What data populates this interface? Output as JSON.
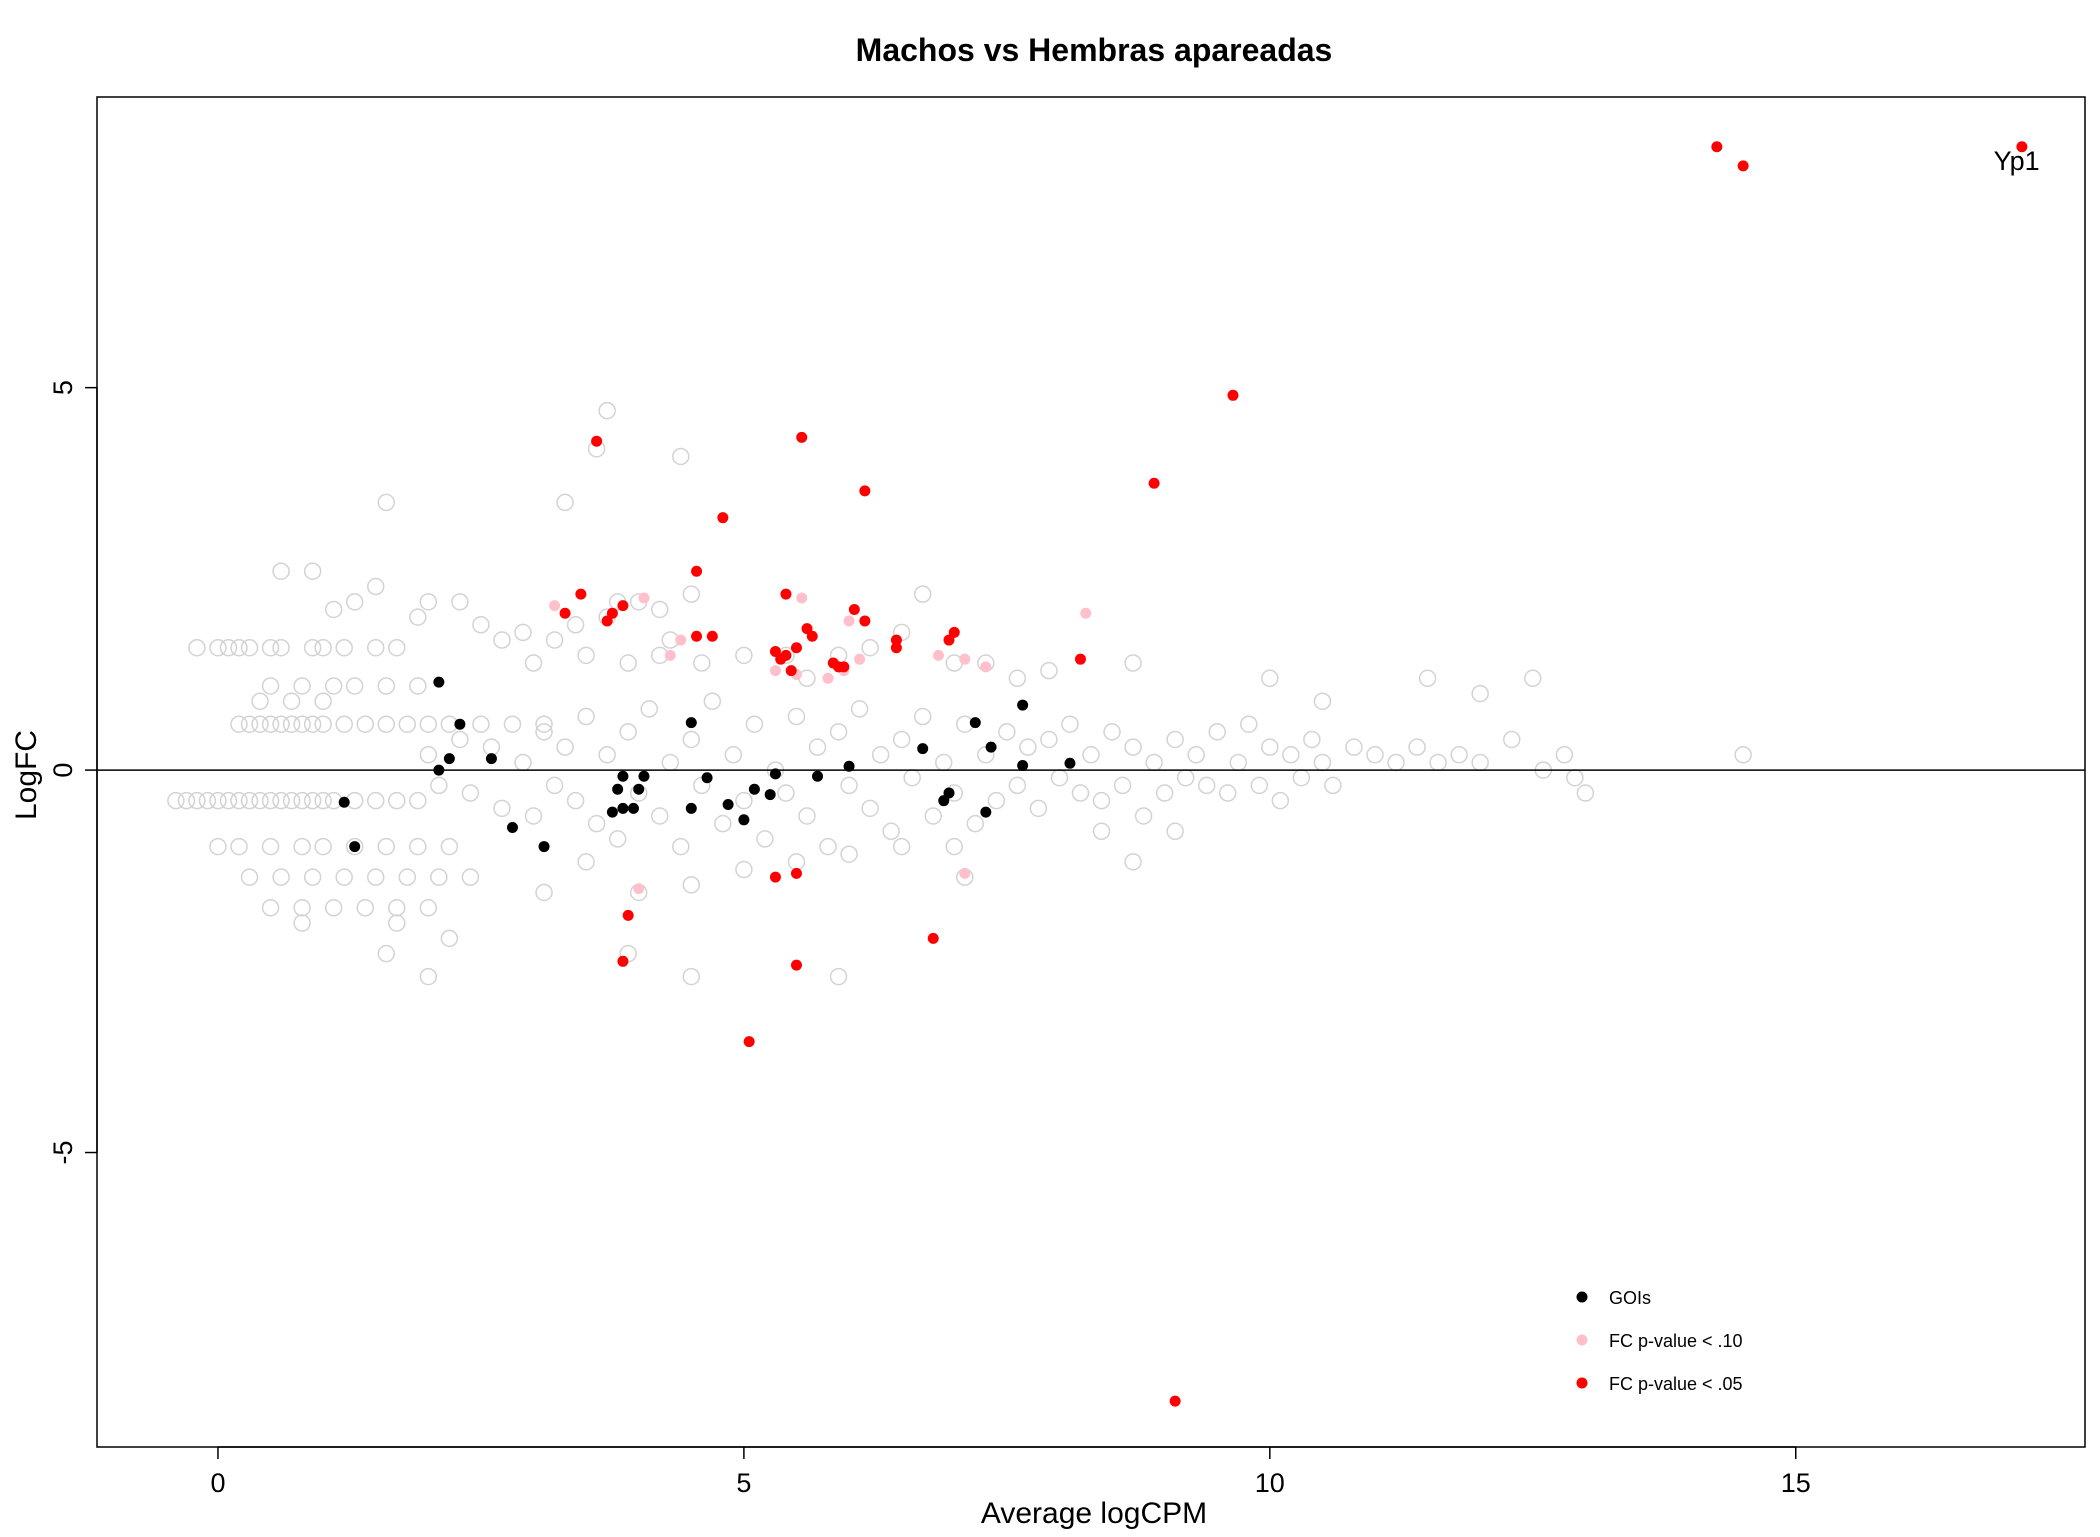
{
  "chart_data": {
    "type": "scatter",
    "title": "Machos vs Hembras apareadas",
    "xlabel": "Average logCPM",
    "ylabel": "LogFC",
    "xlim": [
      -1.15,
      17.75
    ],
    "ylim": [
      -8.85,
      8.8
    ],
    "x_ticks": [
      0,
      5,
      10,
      15
    ],
    "y_ticks": [
      -5,
      0,
      5
    ],
    "x_tick_labels": [
      "0",
      "5",
      "10",
      "15"
    ],
    "y_tick_labels": [
      "-5",
      "0",
      "5"
    ],
    "reference_line": {
      "y": 0
    },
    "grid": false,
    "legend_position": "bottom-right",
    "annotations": [
      {
        "text": "Yp1",
        "x": 17.1,
        "y": 7.9
      }
    ],
    "colors": {
      "background_genes": "#d3d3d3",
      "GOIs": "#000000",
      "p10": "#ffc0cb",
      "p05": "#ff0000"
    },
    "background_series": {
      "name": "",
      "note_marker": "hollow-circle",
      "points": [
        [
          -0.4,
          -0.4
        ],
        [
          -0.3,
          -0.4
        ],
        [
          -0.2,
          -0.4
        ],
        [
          -0.1,
          -0.4
        ],
        [
          0,
          -0.4
        ],
        [
          0.1,
          -0.4
        ],
        [
          0.2,
          -0.4
        ],
        [
          0.3,
          -0.4
        ],
        [
          0.4,
          -0.4
        ],
        [
          0.5,
          -0.4
        ],
        [
          0.6,
          -0.4
        ],
        [
          0.7,
          -0.4
        ],
        [
          0.8,
          -0.4
        ],
        [
          0.9,
          -0.4
        ],
        [
          1.0,
          -0.4
        ],
        [
          1.1,
          -0.4
        ],
        [
          1.3,
          -0.4
        ],
        [
          1.5,
          -0.4
        ],
        [
          1.7,
          -0.4
        ],
        [
          1.9,
          -0.4
        ],
        [
          0.2,
          0.6
        ],
        [
          0.3,
          0.6
        ],
        [
          0.4,
          0.6
        ],
        [
          0.5,
          0.6
        ],
        [
          0.6,
          0.6
        ],
        [
          0.7,
          0.6
        ],
        [
          0.8,
          0.6
        ],
        [
          0.9,
          0.6
        ],
        [
          1.0,
          0.6
        ],
        [
          1.2,
          0.6
        ],
        [
          1.4,
          0.6
        ],
        [
          1.6,
          0.6
        ],
        [
          1.8,
          0.6
        ],
        [
          2.0,
          0.6
        ],
        [
          2.2,
          0.6
        ],
        [
          2.5,
          0.6
        ],
        [
          2.8,
          0.6
        ],
        [
          3.1,
          0.6
        ],
        [
          -0.2,
          1.6
        ],
        [
          0,
          1.6
        ],
        [
          0.1,
          1.6
        ],
        [
          0.2,
          1.6
        ],
        [
          0.3,
          1.6
        ],
        [
          0.5,
          1.6
        ],
        [
          0.6,
          1.6
        ],
        [
          0.9,
          1.6
        ],
        [
          1.0,
          1.6
        ],
        [
          1.2,
          1.6
        ],
        [
          1.5,
          1.6
        ],
        [
          1.7,
          1.6
        ],
        [
          0.5,
          1.1
        ],
        [
          0.8,
          1.1
        ],
        [
          1.1,
          1.1
        ],
        [
          1.3,
          1.1
        ],
        [
          1.6,
          1.1
        ],
        [
          1.9,
          1.1
        ],
        [
          0.4,
          0.9
        ],
        [
          0.7,
          0.9
        ],
        [
          1.0,
          0.9
        ],
        [
          0,
          -1.0
        ],
        [
          0.2,
          -1.0
        ],
        [
          0.5,
          -1.0
        ],
        [
          0.8,
          -1.0
        ],
        [
          1.0,
          -1.0
        ],
        [
          1.3,
          -1.0
        ],
        [
          1.6,
          -1.0
        ],
        [
          1.9,
          -1.0
        ],
        [
          2.2,
          -1.0
        ],
        [
          0.3,
          -1.4
        ],
        [
          0.6,
          -1.4
        ],
        [
          0.9,
          -1.4
        ],
        [
          1.2,
          -1.4
        ],
        [
          1.5,
          -1.4
        ],
        [
          1.8,
          -1.4
        ],
        [
          2.1,
          -1.4
        ],
        [
          2.4,
          -1.4
        ],
        [
          0.5,
          -1.8
        ],
        [
          0.8,
          -1.8
        ],
        [
          1.1,
          -1.8
        ],
        [
          1.4,
          -1.8
        ],
        [
          1.7,
          -1.8
        ],
        [
          2.0,
          -1.8
        ],
        [
          0.8,
          -2.0
        ],
        [
          1.7,
          -2.0
        ],
        [
          2.2,
          -2.2
        ],
        [
          1.6,
          -2.4
        ],
        [
          2.0,
          -2.7
        ],
        [
          0.6,
          2.6
        ],
        [
          0.9,
          2.6
        ],
        [
          1.1,
          2.1
        ],
        [
          1.3,
          2.2
        ],
        [
          1.5,
          2.4
        ],
        [
          1.6,
          3.5
        ],
        [
          1.9,
          2.0
        ],
        [
          2.0,
          2.2
        ],
        [
          2.3,
          2.2
        ],
        [
          2.5,
          1.9
        ],
        [
          2.7,
          1.7
        ],
        [
          2.9,
          1.8
        ],
        [
          3.2,
          1.7
        ],
        [
          3.4,
          1.9
        ],
        [
          3.7,
          2.0
        ],
        [
          3.3,
          3.5
        ],
        [
          3.6,
          4.2
        ],
        [
          3.7,
          4.7
        ],
        [
          3.0,
          1.4
        ],
        [
          3.5,
          1.5
        ],
        [
          3.9,
          1.4
        ],
        [
          4.2,
          1.5
        ],
        [
          4.3,
          1.7
        ],
        [
          4.6,
          1.4
        ],
        [
          5.0,
          1.5
        ],
        [
          5.4,
          1.5
        ],
        [
          5.6,
          1.2
        ],
        [
          5.9,
          1.5
        ],
        [
          6.2,
          1.6
        ],
        [
          6.5,
          1.8
        ],
        [
          6.7,
          2.3
        ],
        [
          7.0,
          1.4
        ],
        [
          7.3,
          1.4
        ],
        [
          7.6,
          1.2
        ],
        [
          7.9,
          1.3
        ],
        [
          4.4,
          4.1
        ],
        [
          3.8,
          2.2
        ],
        [
          4.0,
          2.2
        ],
        [
          4.2,
          2.1
        ],
        [
          4.5,
          2.3
        ],
        [
          2.0,
          0.2
        ],
        [
          2.1,
          -0.2
        ],
        [
          2.3,
          0.4
        ],
        [
          2.4,
          -0.3
        ],
        [
          2.6,
          0.3
        ],
        [
          2.7,
          -0.5
        ],
        [
          2.9,
          0.1
        ],
        [
          3.0,
          -0.6
        ],
        [
          3.1,
          0.5
        ],
        [
          3.2,
          -0.2
        ],
        [
          3.3,
          0.3
        ],
        [
          3.4,
          -0.4
        ],
        [
          3.5,
          0.7
        ],
        [
          3.6,
          -0.7
        ],
        [
          3.7,
          0.2
        ],
        [
          3.8,
          -0.9
        ],
        [
          3.9,
          0.5
        ],
        [
          4.0,
          -0.3
        ],
        [
          4.1,
          0.8
        ],
        [
          4.2,
          -0.6
        ],
        [
          4.3,
          0.1
        ],
        [
          4.4,
          -1.0
        ],
        [
          4.5,
          0.4
        ],
        [
          4.6,
          -0.2
        ],
        [
          4.7,
          0.9
        ],
        [
          4.8,
          -0.7
        ],
        [
          4.9,
          0.2
        ],
        [
          5.0,
          -0.4
        ],
        [
          5.1,
          0.6
        ],
        [
          5.2,
          -0.9
        ],
        [
          5.3,
          0.0
        ],
        [
          5.4,
          -0.3
        ],
        [
          5.5,
          0.7
        ],
        [
          5.6,
          -0.6
        ],
        [
          5.7,
          0.3
        ],
        [
          5.8,
          -1.0
        ],
        [
          5.9,
          0.5
        ],
        [
          6.0,
          -0.2
        ],
        [
          6.1,
          0.8
        ],
        [
          6.2,
          -0.5
        ],
        [
          6.3,
          0.2
        ],
        [
          6.4,
          -0.8
        ],
        [
          6.5,
          0.4
        ],
        [
          6.6,
          -0.1
        ],
        [
          6.7,
          0.7
        ],
        [
          6.8,
          -0.6
        ],
        [
          6.9,
          0.1
        ],
        [
          7.0,
          -0.3
        ],
        [
          7.1,
          0.6
        ],
        [
          7.2,
          -0.7
        ],
        [
          7.3,
          0.2
        ],
        [
          7.4,
          -0.4
        ],
        [
          7.5,
          0.5
        ],
        [
          7.6,
          -0.2
        ],
        [
          7.7,
          0.3
        ],
        [
          7.8,
          -0.5
        ],
        [
          7.9,
          0.4
        ],
        [
          8.0,
          -0.1
        ],
        [
          8.1,
          0.6
        ],
        [
          8.2,
          -0.3
        ],
        [
          8.3,
          0.2
        ],
        [
          8.4,
          -0.4
        ],
        [
          8.5,
          0.5
        ],
        [
          8.6,
          -0.2
        ],
        [
          8.7,
          0.3
        ],
        [
          8.8,
          -0.6
        ],
        [
          8.9,
          0.1
        ],
        [
          9.0,
          -0.3
        ],
        [
          9.1,
          0.4
        ],
        [
          9.2,
          -0.1
        ],
        [
          9.3,
          0.2
        ],
        [
          9.4,
          -0.2
        ],
        [
          9.5,
          0.5
        ],
        [
          9.6,
          -0.3
        ],
        [
          9.7,
          0.1
        ],
        [
          9.8,
          0.6
        ],
        [
          9.9,
          -0.2
        ],
        [
          10.0,
          0.3
        ],
        [
          10.1,
          -0.4
        ],
        [
          10.2,
          0.2
        ],
        [
          10.3,
          -0.1
        ],
        [
          10.4,
          0.4
        ],
        [
          10.5,
          0.1
        ],
        [
          10.6,
          -0.2
        ],
        [
          10.8,
          0.3
        ],
        [
          11.0,
          0.2
        ],
        [
          11.2,
          0.1
        ],
        [
          11.4,
          0.3
        ],
        [
          11.6,
          0.1
        ],
        [
          11.8,
          0.2
        ],
        [
          12.0,
          0.1
        ],
        [
          12.3,
          0.4
        ],
        [
          12.6,
          0.0
        ],
        [
          12.9,
          -0.1
        ],
        [
          13.0,
          -0.3
        ],
        [
          10.0,
          1.2
        ],
        [
          10.5,
          0.9
        ],
        [
          11.5,
          1.2
        ],
        [
          12.0,
          1.0
        ],
        [
          12.5,
          1.2
        ],
        [
          12.8,
          0.2
        ],
        [
          14.5,
          0.2
        ],
        [
          8.7,
          1.4
        ],
        [
          8.4,
          -0.8
        ],
        [
          8.7,
          -1.2
        ],
        [
          9.1,
          -0.8
        ],
        [
          3.1,
          -1.6
        ],
        [
          3.5,
          -1.2
        ],
        [
          4.0,
          -1.6
        ],
        [
          4.5,
          -1.5
        ],
        [
          5.0,
          -1.3
        ],
        [
          5.5,
          -1.2
        ],
        [
          6.0,
          -1.1
        ],
        [
          6.5,
          -1.0
        ],
        [
          7.0,
          -1.0
        ],
        [
          4.5,
          -2.7
        ],
        [
          5.9,
          -2.7
        ],
        [
          3.9,
          -2.4
        ],
        [
          7.1,
          -1.4
        ]
      ]
    },
    "series": [
      {
        "name": "GOIs",
        "color": "#000000",
        "points": [
          [
            2.1,
            1.15
          ],
          [
            2.3,
            0.6
          ],
          [
            2.2,
            0.15
          ],
          [
            2.1,
            0.0
          ],
          [
            2.6,
            0.15
          ],
          [
            1.2,
            -0.42
          ],
          [
            1.3,
            -1.0
          ],
          [
            2.8,
            -0.75
          ],
          [
            3.1,
            -1.0
          ],
          [
            4.5,
            0.62
          ],
          [
            3.85,
            -0.08
          ],
          [
            4.05,
            -0.08
          ],
          [
            3.8,
            -0.25
          ],
          [
            3.75,
            -0.55
          ],
          [
            3.85,
            -0.5
          ],
          [
            3.95,
            -0.5
          ],
          [
            4.0,
            -0.25
          ],
          [
            4.65,
            -0.1
          ],
          [
            4.5,
            -0.5
          ],
          [
            4.85,
            -0.45
          ],
          [
            5.0,
            -0.65
          ],
          [
            5.1,
            -0.25
          ],
          [
            5.25,
            -0.32
          ],
          [
            5.3,
            -0.05
          ],
          [
            5.7,
            -0.08
          ],
          [
            6.0,
            0.05
          ],
          [
            6.7,
            0.28
          ],
          [
            6.9,
            -0.4
          ],
          [
            6.95,
            -0.3
          ],
          [
            7.2,
            0.62
          ],
          [
            7.3,
            -0.55
          ],
          [
            7.35,
            0.3
          ],
          [
            7.65,
            0.85
          ],
          [
            7.65,
            0.06
          ],
          [
            8.1,
            0.09
          ]
        ]
      },
      {
        "name": "FC p-value < .10",
        "color": "#ffc0cb",
        "points": [
          [
            3.2,
            2.15
          ],
          [
            4.05,
            2.25
          ],
          [
            4.3,
            1.5
          ],
          [
            4.4,
            1.7
          ],
          [
            5.55,
            2.25
          ],
          [
            6.0,
            1.95
          ],
          [
            6.1,
            1.45
          ],
          [
            5.8,
            1.2
          ],
          [
            5.95,
            1.3
          ],
          [
            7.1,
            1.45
          ],
          [
            7.3,
            1.35
          ],
          [
            6.85,
            1.5
          ],
          [
            8.25,
            2.05
          ],
          [
            4.0,
            -1.55
          ],
          [
            7.1,
            -1.35
          ],
          [
            5.3,
            1.3
          ],
          [
            5.5,
            1.25
          ]
        ]
      },
      {
        "name": "FC p-value < .05",
        "color": "#ff0000",
        "points": [
          [
            14.25,
            8.15
          ],
          [
            14.5,
            7.9
          ],
          [
            17.15,
            8.15
          ],
          [
            9.65,
            4.9
          ],
          [
            8.9,
            3.75
          ],
          [
            3.6,
            4.3
          ],
          [
            5.55,
            4.35
          ],
          [
            6.15,
            3.65
          ],
          [
            4.8,
            3.3
          ],
          [
            4.55,
            2.6
          ],
          [
            3.45,
            2.3
          ],
          [
            3.3,
            2.05
          ],
          [
            3.7,
            1.95
          ],
          [
            3.75,
            2.05
          ],
          [
            3.85,
            2.15
          ],
          [
            5.4,
            2.3
          ],
          [
            6.05,
            2.1
          ],
          [
            6.15,
            1.95
          ],
          [
            5.6,
            1.85
          ],
          [
            5.65,
            1.75
          ],
          [
            4.55,
            1.75
          ],
          [
            4.7,
            1.75
          ],
          [
            6.95,
            1.7
          ],
          [
            7.0,
            1.8
          ],
          [
            6.45,
            1.6
          ],
          [
            6.45,
            1.7
          ],
          [
            5.3,
            1.55
          ],
          [
            5.4,
            1.5
          ],
          [
            5.35,
            1.45
          ],
          [
            5.5,
            1.6
          ],
          [
            5.45,
            1.3
          ],
          [
            5.85,
            1.4
          ],
          [
            5.9,
            1.35
          ],
          [
            5.95,
            1.35
          ],
          [
            8.2,
            1.45
          ],
          [
            5.3,
            -1.4
          ],
          [
            5.5,
            -1.35
          ],
          [
            3.9,
            -1.9
          ],
          [
            3.85,
            -2.5
          ],
          [
            6.8,
            -2.2
          ],
          [
            5.5,
            -2.55
          ],
          [
            5.05,
            -3.55
          ],
          [
            9.1,
            -8.25
          ]
        ]
      }
    ]
  }
}
